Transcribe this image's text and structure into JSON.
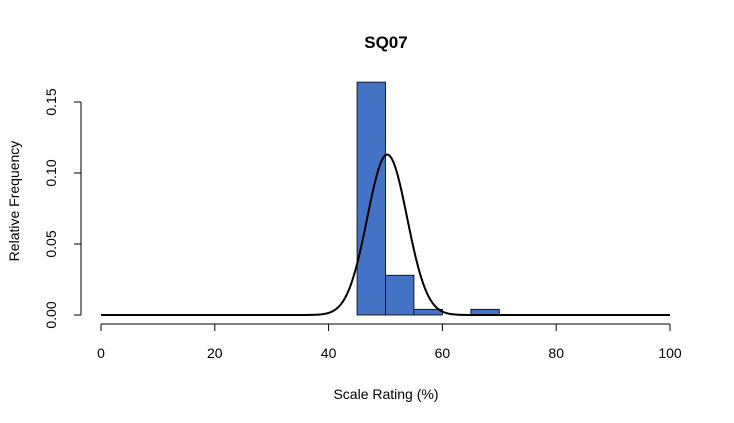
{
  "chart_data": {
    "type": "bar",
    "subtype": "histogram",
    "title": "SQ07",
    "xlabel": "Scale Rating (%)",
    "ylabel": "Relative Frequency",
    "xlim": [
      0,
      100
    ],
    "ylim": [
      0,
      0.15
    ],
    "x_ticks": [
      0,
      20,
      40,
      60,
      80,
      100
    ],
    "y_ticks": [
      0.0,
      0.05,
      0.1,
      0.15
    ],
    "y_tick_labels": [
      "0.00",
      "0.05",
      "0.10",
      "0.15"
    ],
    "bin_width": 5,
    "bins": [
      {
        "start": 45,
        "end": 50,
        "value": 0.164
      },
      {
        "start": 50,
        "end": 55,
        "value": 0.028
      },
      {
        "start": 55,
        "end": 60,
        "value": 0.004
      },
      {
        "start": 65,
        "end": 70,
        "value": 0.004
      }
    ],
    "bar_color": "#4472C4",
    "normal_curve": {
      "mean": 50.3,
      "sd": 3.5,
      "peak": 0.113
    }
  }
}
